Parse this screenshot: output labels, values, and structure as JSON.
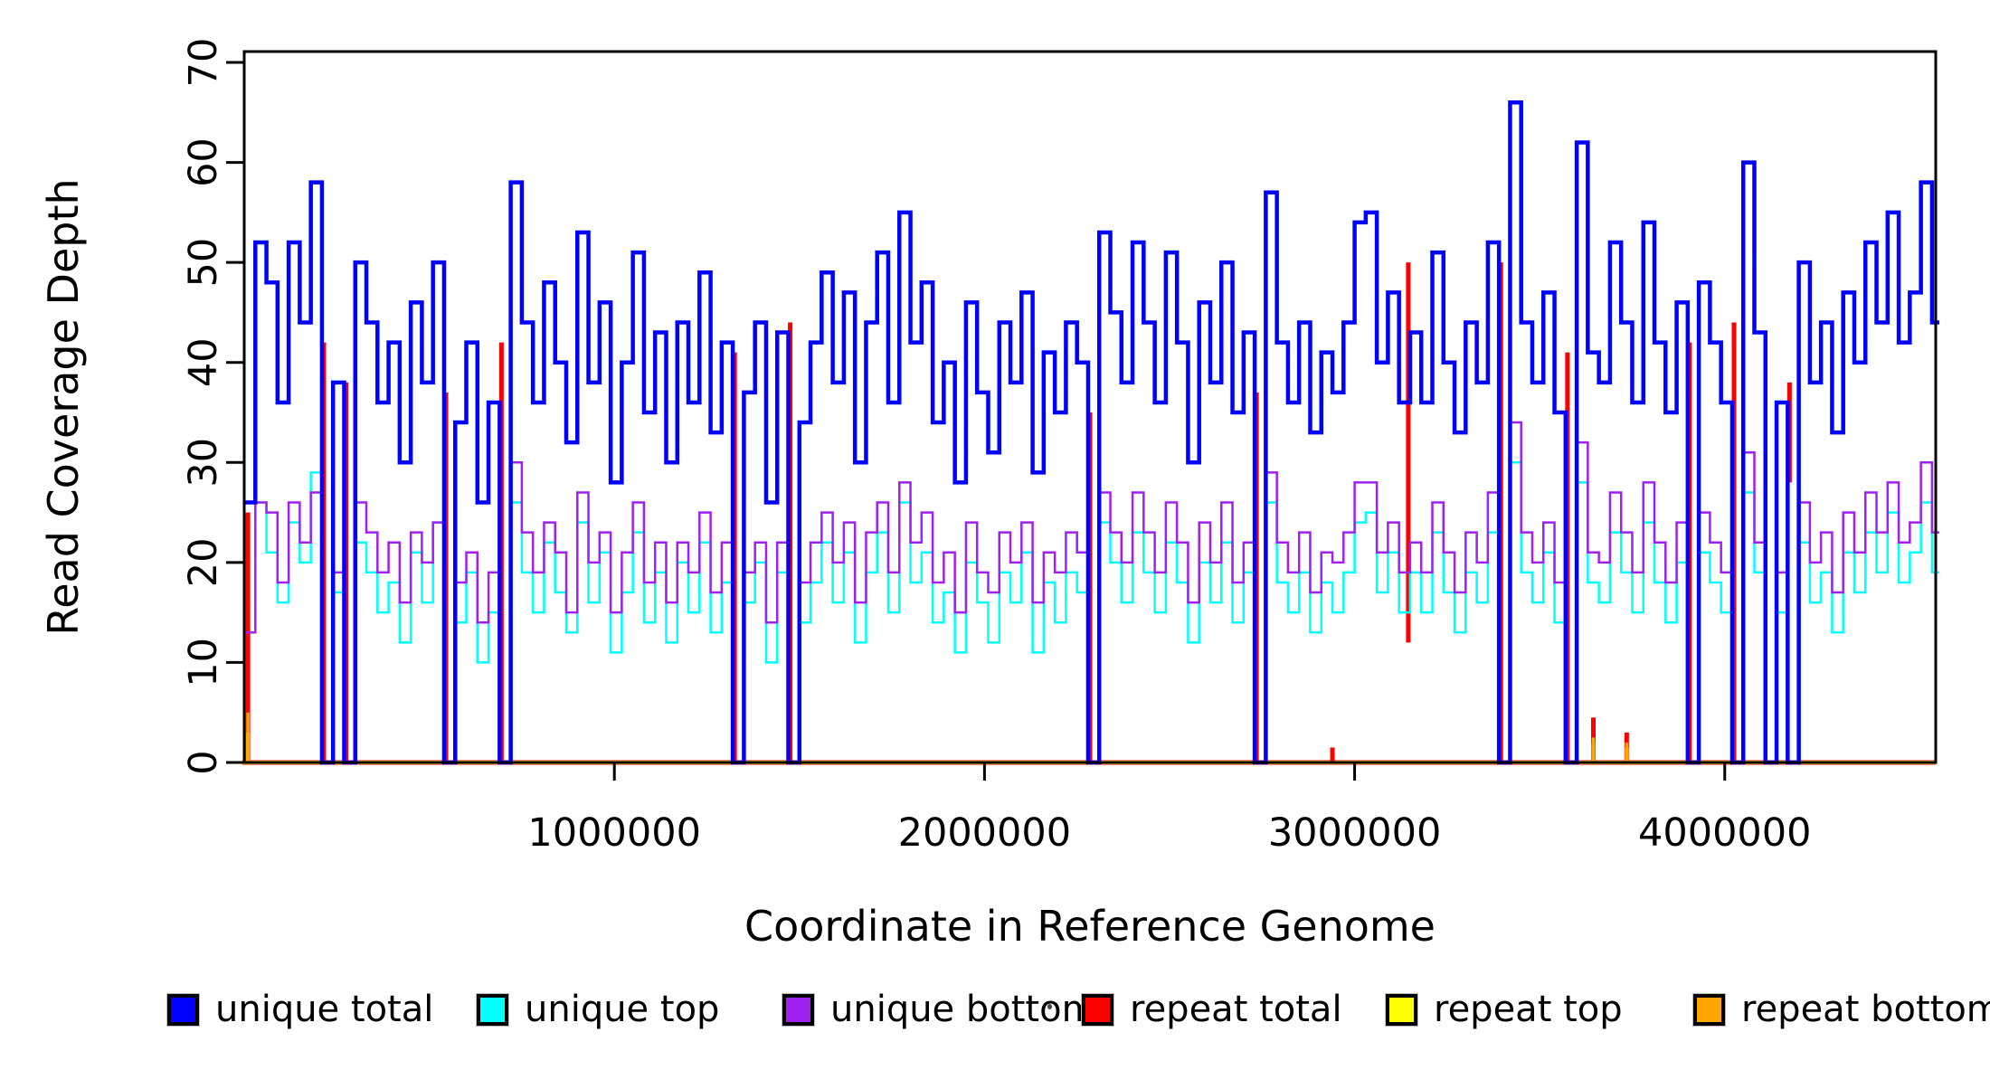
{
  "chart_data": {
    "type": "line",
    "subtype": "step",
    "title": "",
    "xlabel": "Coordinate in Reference Genome",
    "ylabel": "Read Coverage Depth",
    "xlim": [
      0,
      4570000
    ],
    "ylim": [
      0,
      70
    ],
    "grid": false,
    "legend_position": "bottom",
    "x_ticks": [
      1000000,
      2000000,
      3000000,
      4000000
    ],
    "x_tick_labels": [
      "1000000",
      "2000000",
      "3000000",
      "4000000"
    ],
    "y_ticks": [
      0,
      10,
      20,
      30,
      40,
      50,
      60,
      70
    ],
    "y_tick_labels": [
      "0",
      "10",
      "20",
      "30",
      "40",
      "50",
      "60",
      "70"
    ],
    "x_start": 0,
    "x_step": 30000,
    "series": [
      {
        "name": "unique total",
        "color": "#0000FF",
        "width": 4.5,
        "kind": "step",
        "values": [
          26,
          52,
          48,
          36,
          52,
          44,
          58,
          0,
          38,
          0,
          50,
          44,
          36,
          42,
          30,
          46,
          38,
          50,
          0,
          34,
          42,
          26,
          36,
          0,
          58,
          44,
          36,
          48,
          40,
          32,
          53,
          38,
          46,
          28,
          40,
          51,
          35,
          43,
          30,
          44,
          36,
          49,
          33,
          42,
          0,
          37,
          44,
          26,
          43,
          0,
          34,
          42,
          49,
          38,
          47,
          30,
          44,
          51,
          36,
          55,
          42,
          48,
          34,
          40,
          28,
          46,
          37,
          31,
          44,
          38,
          47,
          29,
          41,
          35,
          44,
          40,
          0,
          53,
          45,
          38,
          52,
          44,
          36,
          51,
          42,
          30,
          46,
          38,
          50,
          35,
          43,
          0,
          57,
          42,
          36,
          44,
          33,
          41,
          37,
          44,
          54,
          55,
          40,
          47,
          36,
          43,
          36,
          51,
          40,
          33,
          44,
          38,
          52,
          0,
          66,
          44,
          38,
          47,
          35,
          0,
          62,
          41,
          38,
          52,
          44,
          36,
          54,
          42,
          35,
          46,
          0,
          48,
          42,
          36,
          0,
          60,
          43,
          0,
          36,
          0,
          50,
          38,
          44,
          33,
          47,
          40,
          52,
          44,
          55,
          42,
          47,
          58,
          44,
          52
        ]
      },
      {
        "name": "unique top",
        "color": "#00FFFF",
        "width": 2.5,
        "kind": "step",
        "values": [
          13,
          26,
          21,
          16,
          24,
          20,
          29,
          0,
          17,
          0,
          22,
          19,
          15,
          18,
          12,
          21,
          16,
          24,
          0,
          14,
          19,
          10,
          15,
          0,
          26,
          19,
          15,
          22,
          17,
          13,
          24,
          16,
          21,
          11,
          17,
          23,
          14,
          19,
          12,
          20,
          15,
          22,
          13,
          18,
          0,
          16,
          20,
          10,
          19,
          0,
          14,
          18,
          22,
          16,
          21,
          12,
          19,
          23,
          15,
          26,
          18,
          21,
          14,
          17,
          11,
          20,
          16,
          12,
          19,
          16,
          21,
          11,
          18,
          14,
          19,
          17,
          0,
          24,
          20,
          16,
          23,
          19,
          15,
          22,
          18,
          12,
          20,
          16,
          22,
          14,
          19,
          0,
          26,
          18,
          15,
          19,
          13,
          18,
          15,
          19,
          24,
          25,
          17,
          21,
          15,
          19,
          15,
          23,
          17,
          13,
          19,
          16,
          23,
          0,
          30,
          19,
          16,
          21,
          14,
          0,
          28,
          18,
          16,
          23,
          19,
          15,
          24,
          18,
          14,
          20,
          0,
          21,
          18,
          15,
          0,
          27,
          19,
          0,
          15,
          0,
          22,
          16,
          19,
          13,
          21,
          17,
          23,
          19,
          25,
          18,
          21,
          26,
          19,
          23
        ]
      },
      {
        "name": "unique bottom",
        "color": "#A020F0",
        "width": 2.5,
        "kind": "step",
        "values": [
          13,
          26,
          25,
          18,
          26,
          22,
          27,
          0,
          19,
          0,
          26,
          23,
          19,
          22,
          16,
          23,
          20,
          24,
          0,
          18,
          21,
          14,
          19,
          0,
          30,
          23,
          19,
          24,
          21,
          15,
          27,
          20,
          23,
          15,
          21,
          26,
          18,
          22,
          16,
          22,
          19,
          25,
          17,
          22,
          0,
          19,
          22,
          14,
          22,
          0,
          18,
          22,
          25,
          20,
          24,
          16,
          23,
          26,
          19,
          28,
          22,
          25,
          18,
          21,
          15,
          24,
          19,
          17,
          23,
          20,
          24,
          16,
          21,
          19,
          23,
          21,
          0,
          27,
          23,
          20,
          27,
          23,
          19,
          26,
          22,
          16,
          24,
          20,
          26,
          18,
          22,
          0,
          29,
          22,
          19,
          23,
          17,
          21,
          20,
          23,
          28,
          28,
          21,
          24,
          19,
          22,
          19,
          26,
          21,
          17,
          23,
          20,
          27,
          0,
          34,
          23,
          20,
          24,
          18,
          0,
          32,
          21,
          20,
          27,
          23,
          19,
          28,
          22,
          18,
          24,
          0,
          25,
          22,
          19,
          0,
          31,
          22,
          0,
          19,
          0,
          26,
          20,
          23,
          17,
          25,
          21,
          27,
          23,
          28,
          22,
          24,
          30,
          23,
          27
        ]
      },
      {
        "name": "repeat total",
        "color": "#FF0000",
        "width": 5,
        "kind": "spike",
        "baseline": 0,
        "spikes": [
          [
            10000,
            0,
            25
          ],
          [
            215000,
            0,
            42
          ],
          [
            275000,
            0,
            38
          ],
          [
            545000,
            0,
            37
          ],
          [
            695000,
            0,
            42
          ],
          [
            1325000,
            0,
            41
          ],
          [
            1475000,
            0,
            44
          ],
          [
            2285000,
            0,
            35
          ],
          [
            2735000,
            0,
            37
          ],
          [
            2940000,
            0,
            1.5
          ],
          [
            3145000,
            12,
            50
          ],
          [
            3395000,
            0,
            50
          ],
          [
            3575000,
            0,
            41
          ],
          [
            3645000,
            0,
            4.5
          ],
          [
            3735000,
            0,
            3
          ],
          [
            3905000,
            0,
            42
          ],
          [
            4025000,
            0,
            44
          ],
          [
            4175000,
            28,
            38
          ]
        ]
      },
      {
        "name": "repeat top",
        "color": "#FFFF00",
        "width": 4,
        "kind": "spike",
        "baseline": 0,
        "spikes": [
          [
            10000,
            0,
            3
          ],
          [
            3645000,
            0,
            2
          ],
          [
            3735000,
            0,
            1.5
          ]
        ]
      },
      {
        "name": "repeat bottom",
        "color": "#FFA500",
        "width": 3.5,
        "kind": "spike",
        "baseline": 0,
        "spikes": [
          [
            10000,
            0,
            5
          ],
          [
            3645000,
            0,
            2.5
          ],
          [
            3735000,
            0,
            2
          ]
        ]
      }
    ]
  }
}
